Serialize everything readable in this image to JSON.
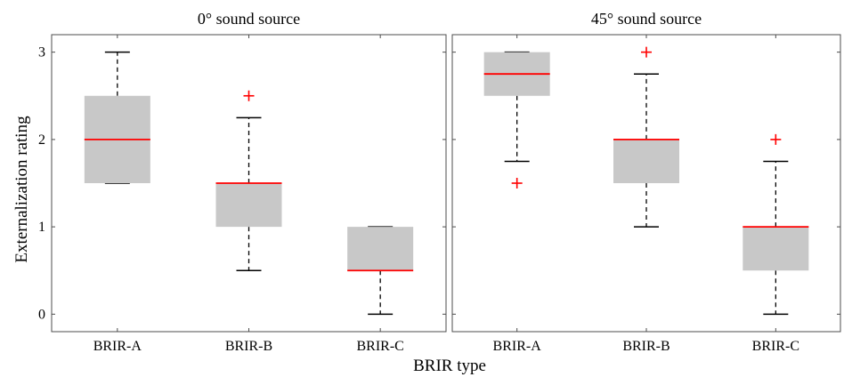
{
  "chart_data": {
    "type": "box",
    "ylabel": "Externalization rating",
    "xlabel": "BRIR type",
    "ylim": [
      -0.2,
      3.2
    ],
    "yticks": [
      0,
      1,
      2,
      3
    ],
    "categories": [
      "BRIR-A",
      "BRIR-B",
      "BRIR-C"
    ],
    "colors": {
      "box_fill": "#c8c8c8",
      "median": "#ff0000",
      "whisker": "#000000",
      "outlier": "#ff0000"
    },
    "panels": [
      {
        "title": "0° sound source",
        "boxes": [
          {
            "category": "BRIR-A",
            "whisker_low": 1.5,
            "q1": 1.5,
            "median": 2.0,
            "q3": 2.5,
            "whisker_high": 3.0,
            "outliers": []
          },
          {
            "category": "BRIR-B",
            "whisker_low": 0.5,
            "q1": 1.0,
            "median": 1.5,
            "q3": 1.5,
            "whisker_high": 2.25,
            "outliers": [
              2.5
            ]
          },
          {
            "category": "BRIR-C",
            "whisker_low": 0.0,
            "q1": 0.5,
            "median": 0.5,
            "q3": 1.0,
            "whisker_high": 1.0,
            "outliers": []
          }
        ]
      },
      {
        "title": "45° sound source",
        "boxes": [
          {
            "category": "BRIR-A",
            "whisker_low": 1.75,
            "q1": 2.5,
            "median": 2.75,
            "q3": 3.0,
            "whisker_high": 3.0,
            "outliers": [
              1.5
            ]
          },
          {
            "category": "BRIR-B",
            "whisker_low": 1.0,
            "q1": 1.5,
            "median": 2.0,
            "q3": 2.0,
            "whisker_high": 2.75,
            "outliers": [
              3.0
            ]
          },
          {
            "category": "BRIR-C",
            "whisker_low": 0.0,
            "q1": 0.5,
            "median": 1.0,
            "q3": 1.0,
            "whisker_high": 1.75,
            "outliers": [
              2.0
            ]
          }
        ]
      }
    ]
  }
}
